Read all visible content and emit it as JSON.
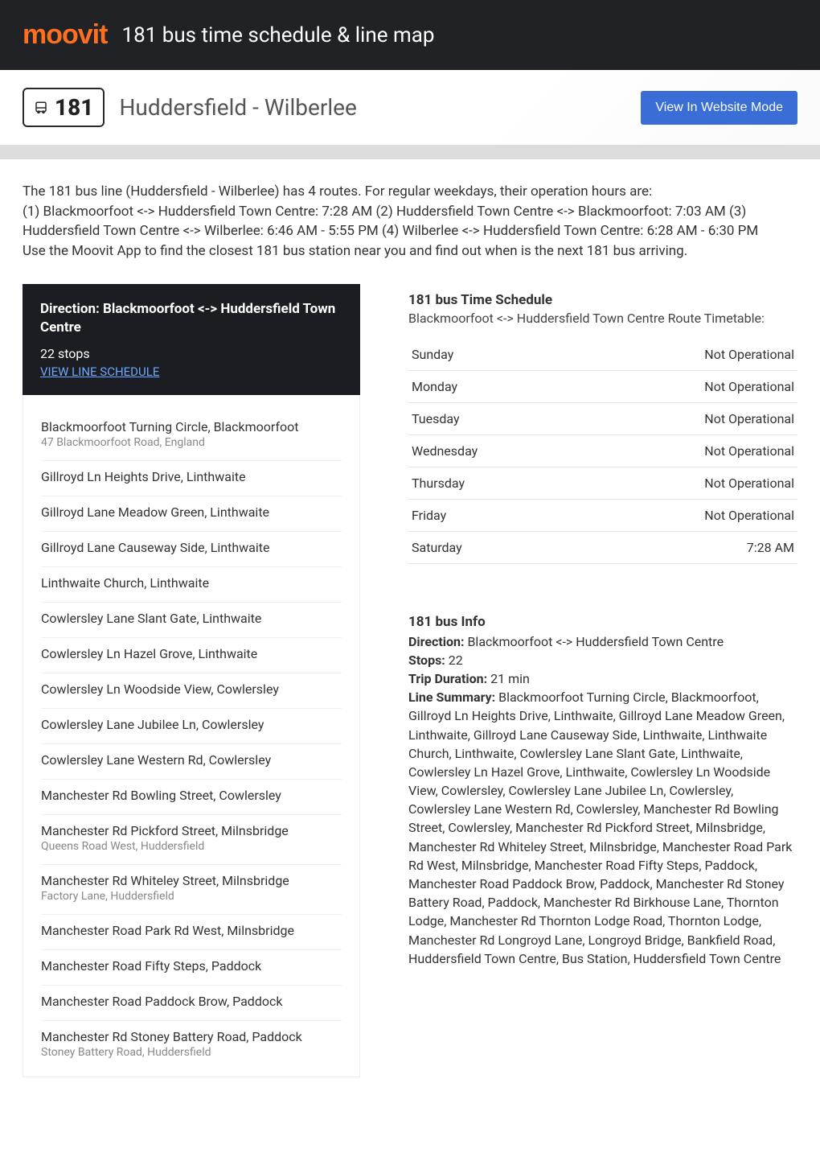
{
  "header": {
    "logo_text": "moovit",
    "title": "181 bus time schedule & line map"
  },
  "route_bar": {
    "route_number": "181",
    "route_name": "Huddersfield - Wilberlee",
    "website_button": "View In Website Mode"
  },
  "intro": {
    "text": "The 181 bus line (Huddersfield - Wilberlee) has 4 routes. For regular weekdays, their operation hours are:\n(1) Blackmoorfoot <-> Huddersfield Town Centre: 7:28 AM (2) Huddersfield Town Centre <-> Blackmoorfoot: 7:03 AM (3) Huddersfield Town Centre <-> Wilberlee: 6:46 AM - 5:55 PM (4) Wilberlee <-> Huddersfield Town Centre: 6:28 AM - 6:30 PM\nUse the Moovit App to find the closest 181 bus station near you and find out when is the next 181 bus arriving."
  },
  "direction_box": {
    "title": "Direction: Blackmoorfoot <-> Huddersfield Town Centre",
    "stops_count": "22 stops",
    "link_text": "VIEW LINE SCHEDULE"
  },
  "stops": [
    {
      "name": "Blackmoorfoot Turning Circle, Blackmoorfoot",
      "sub": "47 Blackmoorfoot Road, England"
    },
    {
      "name": "Gillroyd Ln Heights Drive, Linthwaite",
      "sub": ""
    },
    {
      "name": "Gillroyd Lane Meadow Green, Linthwaite",
      "sub": ""
    },
    {
      "name": "Gillroyd Lane Causeway Side, Linthwaite",
      "sub": ""
    },
    {
      "name": "Linthwaite Church, Linthwaite",
      "sub": ""
    },
    {
      "name": "Cowlersley Lane Slant Gate, Linthwaite",
      "sub": ""
    },
    {
      "name": "Cowlersley Ln Hazel Grove, Linthwaite",
      "sub": ""
    },
    {
      "name": "Cowlersley Ln Woodside View, Cowlersley",
      "sub": ""
    },
    {
      "name": "Cowlersley Lane Jubilee Ln, Cowlersley",
      "sub": ""
    },
    {
      "name": "Cowlersley Lane Western Rd, Cowlersley",
      "sub": ""
    },
    {
      "name": "Manchester Rd Bowling Street, Cowlersley",
      "sub": ""
    },
    {
      "name": "Manchester Rd Pickford Street, Milnsbridge",
      "sub": "Queens Road West, Huddersfield"
    },
    {
      "name": "Manchester Rd Whiteley Street, Milnsbridge",
      "sub": "Factory Lane, Huddersfield"
    },
    {
      "name": "Manchester Road Park Rd West, Milnsbridge",
      "sub": ""
    },
    {
      "name": "Manchester Road Fifty Steps, Paddock",
      "sub": ""
    },
    {
      "name": "Manchester Road Paddock Brow, Paddock",
      "sub": ""
    },
    {
      "name": "Manchester Rd Stoney Battery Road, Paddock",
      "sub": "Stoney Battery Road, Huddersfield"
    }
  ],
  "schedule": {
    "title": "181 bus Time Schedule",
    "sub": "Blackmoorfoot <-> Huddersfield Town Centre Route Timetable:",
    "rows": [
      {
        "day": "Sunday",
        "time": "Not Operational"
      },
      {
        "day": "Monday",
        "time": "Not Operational"
      },
      {
        "day": "Tuesday",
        "time": "Not Operational"
      },
      {
        "day": "Wednesday",
        "time": "Not Operational"
      },
      {
        "day": "Thursday",
        "time": "Not Operational"
      },
      {
        "day": "Friday",
        "time": "Not Operational"
      },
      {
        "day": "Saturday",
        "time": "7:28 AM"
      }
    ]
  },
  "info": {
    "title": "181 bus Info",
    "direction_label": "Direction:",
    "direction_value": " Blackmoorfoot <-> Huddersfield Town Centre",
    "stops_label": "Stops:",
    "stops_value": " 22",
    "trip_label": "Trip Duration:",
    "trip_value": " 21 min",
    "summary_label": "Line Summary:",
    "summary_value": " Blackmoorfoot Turning Circle, Blackmoorfoot, Gillroyd Ln Heights Drive, Linthwaite, Gillroyd Lane Meadow Green, Linthwaite, Gillroyd Lane Causeway Side, Linthwaite, Linthwaite Church, Linthwaite, Cowlersley Lane Slant Gate, Linthwaite, Cowlersley Ln Hazel Grove, Linthwaite, Cowlersley Ln Woodside View, Cowlersley, Cowlersley Lane Jubilee Ln, Cowlersley, Cowlersley Lane Western Rd, Cowlersley, Manchester Rd Bowling Street, Cowlersley, Manchester Rd Pickford Street, Milnsbridge, Manchester Rd Whiteley Street, Milnsbridge, Manchester Road Park Rd West, Milnsbridge, Manchester Road Fifty Steps, Paddock, Manchester Road Paddock Brow, Paddock, Manchester Rd Stoney Battery Road, Paddock, Manchester Rd Birkhouse Lane, Thornton Lodge, Manchester Rd Thornton Lodge Road, Thornton Lodge, Manchester Rd Longroyd Lane, Longroyd Bridge, Bankfield Road, Huddersfield Town Centre, Bus Station, Huddersfield Town Centre"
  },
  "colors": {
    "brand_orange": "#ff6f20",
    "header_bg": "#202226",
    "button_blue": "#3a6fd8",
    "link_blue": "#6aa8ff",
    "grey_strip": "#dcdcdc"
  }
}
